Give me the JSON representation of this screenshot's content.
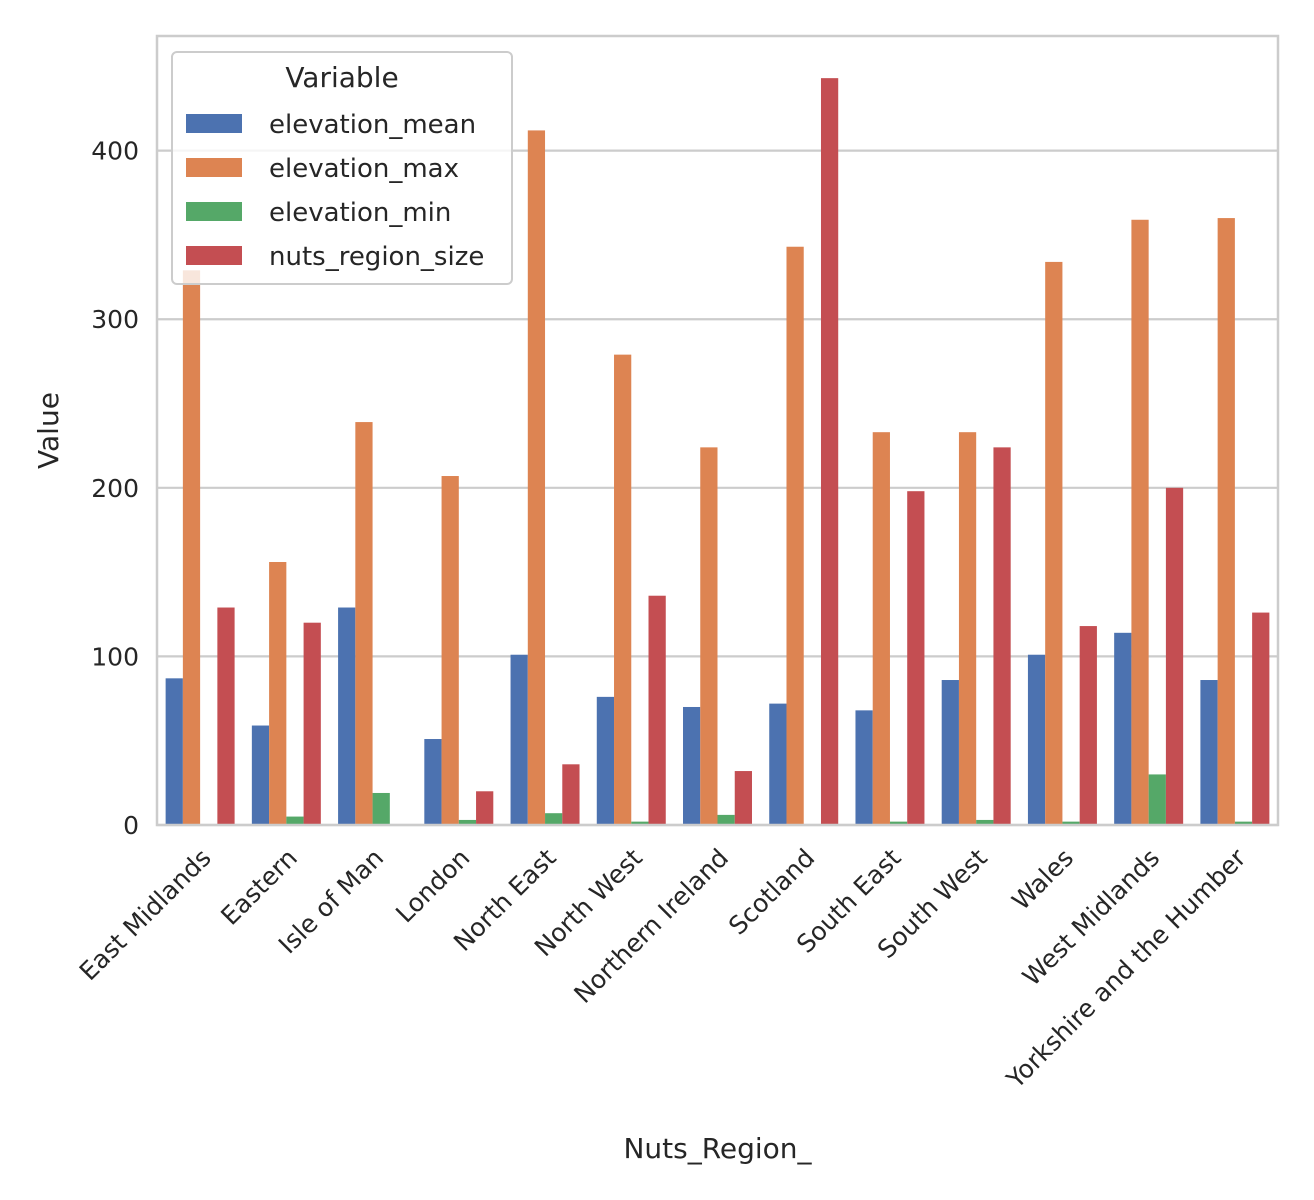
{
  "chart_data": {
    "type": "bar",
    "title": "",
    "xlabel": "Nuts_Region_",
    "ylabel": "Value",
    "ylim": [
      0,
      468
    ],
    "yticks": [
      0,
      100,
      200,
      300,
      400
    ],
    "grid": "horizontal",
    "legend": {
      "title": "Variable",
      "placement": "top-left"
    },
    "categories": [
      "East Midlands",
      "Eastern",
      "Isle of Man",
      "London",
      "North East",
      "North West",
      "Northern Ireland",
      "Scotland",
      "South East",
      "South West",
      "Wales",
      "West Midlands",
      "Yorkshire and the Humber"
    ],
    "series": [
      {
        "name": "elevation_mean",
        "color": "#4c72b0",
        "values": [
          87,
          59,
          129,
          51,
          101,
          76,
          70,
          72,
          68,
          86,
          101,
          114,
          86
        ]
      },
      {
        "name": "elevation_max",
        "color": "#dd8452",
        "values": [
          329,
          156,
          239,
          207,
          412,
          279,
          224,
          343,
          233,
          233,
          334,
          359,
          360
        ]
      },
      {
        "name": "elevation_min",
        "color": "#55a868",
        "values": [
          0,
          5,
          19,
          3,
          7,
          2,
          6,
          0,
          2,
          3,
          2,
          30,
          2
        ]
      },
      {
        "name": "nuts_region_size",
        "color": "#c44e52",
        "values": [
          129,
          120,
          0,
          20,
          36,
          136,
          32,
          443,
          198,
          224,
          118,
          200,
          126
        ]
      }
    ]
  }
}
